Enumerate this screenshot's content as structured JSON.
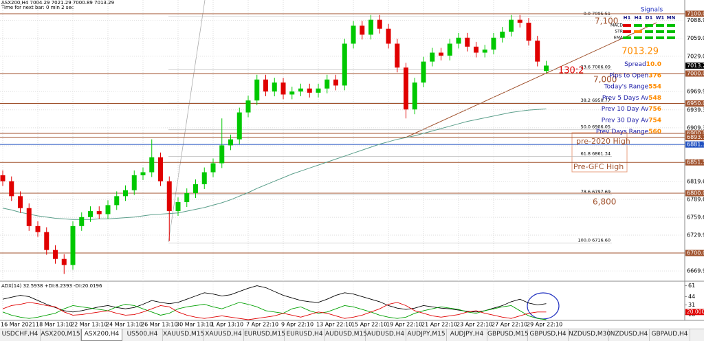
{
  "chart_data": [
    {
      "type": "candlestick",
      "title": "ASX200,H4  7004.29 7021.29 7000.89 7013.29",
      "subtitle": "Time for next bar: 0 min 2 sec",
      "categories": [
        "16 Mar 2021",
        null,
        null,
        null,
        "18 Mar 13:10",
        null,
        null,
        null,
        "22 Mar 13:10",
        null,
        null,
        null,
        "24 Mar 13:10",
        null,
        null,
        null,
        "26 Mar 13:10",
        null,
        null,
        null,
        "30 Mar 13:10",
        null,
        null,
        null,
        "1 Apr 13:10",
        null,
        null,
        null,
        "7 Apr 22:10",
        null,
        null,
        null,
        "9 Apr 22:10",
        null,
        null,
        null,
        "13 Apr 22:10",
        null,
        null,
        null,
        "15 Apr 22:10",
        null,
        null,
        null,
        "19 Apr 22:10",
        null,
        null,
        null,
        "21 Apr 22:10",
        null,
        null,
        null,
        "23 Apr 22:10",
        null,
        null,
        null,
        "27 Apr 22:10",
        null,
        null,
        null,
        "29 Apr 22:10",
        null,
        null
      ],
      "open": [
        6830,
        6820,
        6795,
        6775,
        6745,
        6735,
        6705,
        6690,
        6680,
        6745,
        6760,
        6770,
        6765,
        6780,
        6795,
        6805,
        6830,
        6835,
        6860,
        6820,
        6770,
        6785,
        6800,
        6815,
        6835,
        6850,
        6880,
        6890,
        6935,
        6955,
        6990,
        6970,
        6985,
        6965,
        6970,
        6975,
        6968,
        6975,
        6990,
        6980,
        7050,
        7080,
        7065,
        7090,
        7075,
        7050,
        7010,
        6940,
        6985,
        7020,
        7035,
        7030,
        7050,
        7060,
        7045,
        7035,
        7040,
        7060,
        7070,
        7090,
        7085,
        7055,
        7004.29
      ],
      "high": [
        6838,
        6828,
        6803,
        6783,
        6753,
        6743,
        6713,
        6698,
        6753,
        6768,
        6778,
        6778,
        6788,
        6803,
        6813,
        6838,
        6843,
        6890,
        6868,
        6828,
        6793,
        6808,
        6823,
        6843,
        6858,
        6925,
        6898,
        6943,
        6963,
        6998,
        6998,
        6993,
        6993,
        6978,
        6983,
        6983,
        6983,
        6998,
        6998,
        7058,
        7088,
        7088,
        7098,
        7098,
        7083,
        7058,
        7018,
        6993,
        7028,
        7043,
        7043,
        7058,
        7068,
        7068,
        7053,
        7048,
        7068,
        7078,
        7098,
        7098,
        7093,
        7063,
        7021.29
      ],
      "low": [
        6812,
        6787,
        6767,
        6737,
        6727,
        6697,
        6682,
        6665,
        6672,
        6737,
        6752,
        6757,
        6757,
        6772,
        6787,
        6797,
        6822,
        6827,
        6812,
        6720,
        6762,
        6777,
        6792,
        6807,
        6827,
        6842,
        6872,
        6882,
        6927,
        6947,
        6962,
        6962,
        6957,
        6957,
        6962,
        6960,
        6960,
        6967,
        6972,
        6972,
        7042,
        7057,
        7057,
        7067,
        7042,
        7002,
        6925,
        6932,
        6977,
        7012,
        7022,
        7022,
        7042,
        7037,
        7027,
        7027,
        7032,
        7052,
        7062,
        7077,
        7047,
        7012,
        7000.89
      ],
      "close": [
        6820,
        6795,
        6775,
        6745,
        6735,
        6705,
        6690,
        6680,
        6745,
        6760,
        6770,
        6765,
        6780,
        6795,
        6805,
        6830,
        6835,
        6860,
        6820,
        6770,
        6785,
        6800,
        6815,
        6835,
        6850,
        6880,
        6890,
        6935,
        6955,
        6990,
        6970,
        6985,
        6965,
        6970,
        6975,
        6968,
        6975,
        6990,
        6980,
        7050,
        7080,
        7065,
        7090,
        7075,
        7050,
        7010,
        6940,
        6985,
        7020,
        7035,
        7030,
        7050,
        7060,
        7045,
        7035,
        7040,
        7060,
        7070,
        7090,
        7085,
        7055,
        7020,
        7013.29
      ],
      "up_color": "#00c800",
      "down_color": "#e00000",
      "ma": {
        "color": "#5a9e8a",
        "values": [
          6775,
          6772,
          6768,
          6765,
          6762,
          6760,
          6758,
          6757,
          6756,
          6756,
          6756,
          6757,
          6757,
          6758,
          6759,
          6760,
          6762,
          6764,
          6765,
          6766,
          6767,
          6770,
          6773,
          6776,
          6780,
          6784,
          6789,
          6795,
          6801,
          6808,
          6814,
          6820,
          6826,
          6832,
          6837,
          6842,
          6847,
          6852,
          6857,
          6862,
          6867,
          6872,
          6877,
          6882,
          6886,
          6890,
          6893,
          6896,
          6900,
          6904,
          6908,
          6912,
          6916,
          6920,
          6923,
          6926,
          6929,
          6932,
          6935,
          6937,
          6939,
          6940,
          6941
        ]
      },
      "ylim": [
        6654,
        7123
      ],
      "yticks": [
        {
          "value": 7088.9,
          "label": "7088.90"
        },
        {
          "value": 7059,
          "label": "7059.00"
        },
        {
          "value": 7029,
          "label": "7029.00"
        },
        {
          "value": 6969.9,
          "label": "6969.90"
        },
        {
          "value": 6939.3,
          "label": "6939.30"
        },
        {
          "value": 6909.3,
          "label": "6909.30"
        },
        {
          "value": 6879.3,
          "label": "6879.30"
        },
        {
          "value": 6819.6,
          "label": "6819.60"
        },
        {
          "value": 6789.6,
          "label": "6789.60"
        },
        {
          "value": 6759.6,
          "label": "6759.60"
        },
        {
          "value": 6729.9,
          "label": "6729.90"
        },
        {
          "value": 6669.9,
          "label": "6669.90"
        }
      ],
      "grid": true,
      "price_levels": [
        {
          "value": 7100,
          "label": "7100.00",
          "color": "#a0522d"
        },
        {
          "value": 7000,
          "label": "7000.00",
          "color": "#a0522d"
        },
        {
          "value": 6950,
          "label": "6950.00",
          "color": "#a0522d"
        },
        {
          "value": 6900,
          "label": "6900.00",
          "color": "#a0522d"
        },
        {
          "value": 6893.7,
          "label": "6893.70",
          "color": "#a0522d"
        },
        {
          "value": 6881.39,
          "label": "6881.39",
          "color": "#2050c0"
        },
        {
          "value": 6851.5,
          "label": "6851.50",
          "color": "#a0522d"
        },
        {
          "value": 6800,
          "label": "6800.00",
          "color": "#a0522d"
        },
        {
          "value": 6700,
          "label": "6700.00",
          "color": "#a0522d"
        }
      ],
      "fib_levels": [
        {
          "value": 7095.51,
          "label": "0.0  7095.51"
        },
        {
          "value": 7006.09,
          "label": "23.6  7006.09"
        },
        {
          "value": 6950.77,
          "label": "38.2  6950.77"
        },
        {
          "value": 6906.05,
          "label": "50.0  6906.05"
        },
        {
          "value": 6861.34,
          "label": "61.8  6861.34"
        },
        {
          "value": 6797.69,
          "label": "78.6  6797.69"
        },
        {
          "value": 6716.6,
          "label": "100.0  6716.60"
        }
      ],
      "annotations": [
        "7,100",
        "7,000",
        "6,800",
        "130:2",
        "pre-2020 High",
        "Pre-GFC High"
      ]
    },
    {
      "type": "line",
      "title": "ADX(14) 32.5938 +DI:8.2393 -DI:20.0196",
      "ylim": [
        8,
        67
      ],
      "yticks": [
        61,
        44,
        31,
        16
      ],
      "current": {
        "value": 20,
        "label": "20.0000",
        "color": "#e00000"
      },
      "series": [
        {
          "color": "#000000",
          "values": [
            40,
            43,
            46,
            44,
            38,
            32,
            27,
            22,
            20,
            22,
            25,
            28,
            30,
            27,
            25,
            27,
            32,
            38,
            35,
            33,
            35,
            40,
            45,
            50,
            48,
            45,
            47,
            52,
            57,
            61,
            58,
            52,
            46,
            42,
            38,
            36,
            35,
            40,
            46,
            50,
            48,
            44,
            40,
            36,
            30,
            26,
            24,
            26,
            30,
            28,
            26,
            25,
            23,
            21,
            20,
            22,
            26,
            30,
            36,
            40,
            34,
            31,
            33
          ]
        },
        {
          "color": "#00a000",
          "values": [
            20,
            15,
            12,
            10,
            12,
            15,
            18,
            25,
            30,
            28,
            26,
            24,
            22,
            28,
            32,
            30,
            25,
            20,
            15,
            18,
            25,
            28,
            30,
            32,
            28,
            25,
            30,
            35,
            32,
            28,
            22,
            20,
            18,
            25,
            28,
            22,
            18,
            20,
            25,
            30,
            28,
            24,
            20,
            15,
            12,
            10,
            12,
            18,
            22,
            25,
            28,
            26,
            24,
            20,
            18,
            22,
            25,
            28,
            30,
            22,
            14,
            10,
            8
          ]
        },
        {
          "color": "#e00000",
          "values": [
            25,
            30,
            32,
            35,
            33,
            30,
            28,
            20,
            15,
            16,
            18,
            20,
            22,
            18,
            15,
            16,
            20,
            25,
            30,
            28,
            20,
            15,
            12,
            10,
            12,
            14,
            12,
            10,
            8,
            10,
            12,
            14,
            18,
            15,
            12,
            16,
            20,
            18,
            14,
            10,
            12,
            15,
            20,
            25,
            32,
            35,
            30,
            22,
            18,
            14,
            12,
            14,
            16,
            20,
            22,
            18,
            15,
            12,
            10,
            14,
            18,
            20,
            20
          ]
        }
      ]
    }
  ],
  "signals": {
    "title": "Signals",
    "columns": [
      "H1",
      "H4",
      "D1",
      "W1",
      "MN"
    ],
    "rows": [
      {
        "label": "MACD",
        "colors": [
          "#e00000",
          "#00c000",
          "#00c000",
          "#00c000",
          "#00c000"
        ]
      },
      {
        "label": "STR",
        "colors": [
          "#e00000",
          "#ff8c00",
          "#00c000",
          "#00c000",
          "#00c000"
        ]
      },
      {
        "label": "EMA",
        "colors": [
          "#00c000",
          "#00c000",
          "#00c000",
          "#00c000",
          "#00c000"
        ]
      }
    ]
  },
  "info_panel": [
    {
      "label": "Spread",
      "value": "10.0"
    },
    {
      "label": "Pips to Open",
      "value": "376"
    },
    {
      "label": "Today's Range",
      "value": "554"
    },
    {
      "label": "Prev 5 Days Av",
      "value": "548"
    },
    {
      "label": "Prev 10 Day Av",
      "value": "756"
    },
    {
      "label": "Prev 30 Day Av",
      "value": "754"
    },
    {
      "label": "Prev Days Range",
      "value": "560"
    }
  ],
  "tabs": [
    {
      "label": "USDCHF,H4"
    },
    {
      "label": "ASX200,M15"
    },
    {
      "label": "ASX200,H4",
      "active": true
    },
    {
      "label": "US500,H4"
    },
    {
      "label": "XAUUSD,M15"
    },
    {
      "label": "XAUUSD,H4"
    },
    {
      "label": "EURUSD,M15"
    },
    {
      "label": "EURUSD,H4"
    },
    {
      "label": "AUDUSD,M15"
    },
    {
      "label": "AUDUSD,H4"
    },
    {
      "label": "AUDJPY,M15"
    },
    {
      "label": "AUDJPY,H4"
    },
    {
      "label": "GBPUSD,M15"
    },
    {
      "label": "GBPUSD,H4"
    },
    {
      "label": "NZDUSD,M30"
    },
    {
      "label": "NZDUSD,H4"
    },
    {
      "label": "GBPAUD,H4"
    }
  ]
}
